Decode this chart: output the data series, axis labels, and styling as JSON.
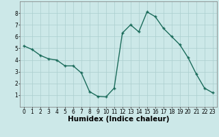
{
  "x": [
    0,
    1,
    2,
    3,
    4,
    5,
    6,
    7,
    8,
    9,
    10,
    11,
    12,
    13,
    14,
    15,
    16,
    17,
    18,
    19,
    20,
    21,
    22,
    23
  ],
  "y": [
    5.2,
    4.9,
    4.4,
    4.1,
    4.0,
    3.5,
    3.5,
    2.9,
    1.3,
    0.9,
    0.85,
    1.6,
    6.3,
    7.0,
    6.4,
    8.1,
    7.7,
    6.7,
    6.0,
    5.3,
    4.2,
    2.8,
    1.6,
    1.2
  ],
  "xlabel": "Humidex (Indice chaleur)",
  "xlim_min": -0.5,
  "xlim_max": 23.5,
  "ylim_min": 0,
  "ylim_max": 9,
  "yticks": [
    1,
    2,
    3,
    4,
    5,
    6,
    7,
    8
  ],
  "xticks": [
    0,
    1,
    2,
    3,
    4,
    5,
    6,
    7,
    8,
    9,
    10,
    11,
    12,
    13,
    14,
    15,
    16,
    17,
    18,
    19,
    20,
    21,
    22,
    23
  ],
  "line_color": "#1a6b5a",
  "marker": "+",
  "bg_color": "#cce8e8",
  "grid_color": "#aacece",
  "tick_fontsize": 5.5,
  "xlabel_fontsize": 7.5,
  "linewidth": 1.0,
  "markersize": 3.5
}
